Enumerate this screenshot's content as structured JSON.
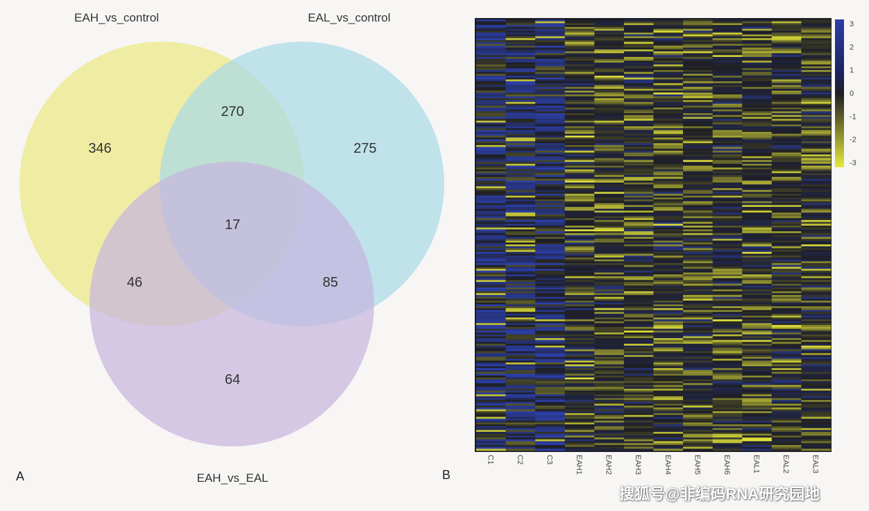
{
  "panels": {
    "a_label": "A",
    "b_label": "B"
  },
  "chart_data": [
    {
      "type": "venn",
      "sets": [
        {
          "name": "EAH_vs_control",
          "color": "#ece783"
        },
        {
          "name": "EAL_vs_control",
          "color": "#a9dae7"
        },
        {
          "name": "EAH_vs_EAL",
          "color": "#c6b6df"
        }
      ],
      "regions": {
        "only_EAH_vs_control": "346",
        "only_EAL_vs_control": "275",
        "only_EAH_vs_EAL": "64",
        "EAH_vs_control_and_EAL_vs_control": "270",
        "EAH_vs_control_and_EAH_vs_EAL": "46",
        "EAL_vs_control_and_EAH_vs_EAL": "85",
        "all_three": "17"
      }
    },
    {
      "type": "heatmap",
      "columns": [
        "C1",
        "C2",
        "C3",
        "EAH1",
        "EAH2",
        "EAH3",
        "EAH4",
        "EAH5",
        "EAH6",
        "EAL1",
        "EAL2",
        "EAL3"
      ],
      "color_scale": {
        "min": -3,
        "max": 3,
        "ticks": [
          "3",
          "2",
          "1",
          "0",
          "-1",
          "-2",
          "-3"
        ],
        "colors": [
          "#2c3fa8",
          "#1e1e24",
          "#e2e33a"
        ]
      }
    }
  ],
  "watermark": "搜狐号@非编码RNA研究园地"
}
